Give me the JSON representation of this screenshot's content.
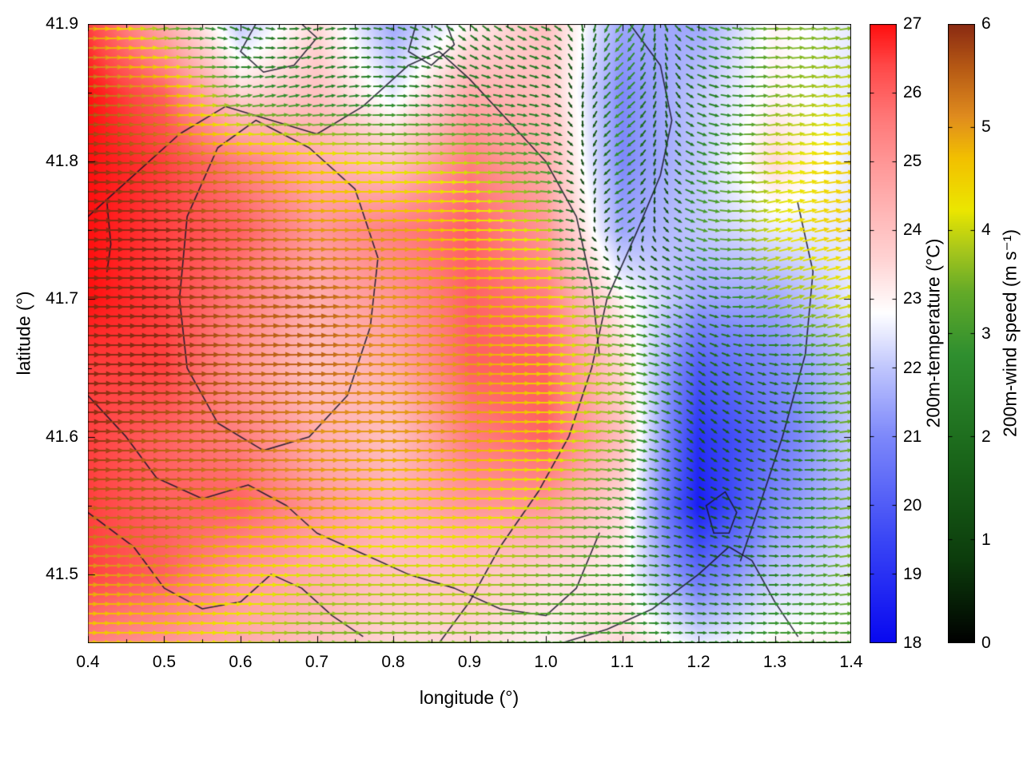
{
  "axes": {
    "x": {
      "label": "longitude (°)",
      "min": 0.4,
      "max": 1.4,
      "ticks": [
        0.4,
        0.5,
        0.6,
        0.7,
        0.8,
        0.9,
        1.0,
        1.1,
        1.2,
        1.3,
        1.4
      ],
      "tick_labels": [
        "0.4",
        "0.5",
        "0.6",
        "0.7",
        "0.8",
        "0.9",
        "1.0",
        "1.1",
        "1.2",
        "1.3",
        "1.4"
      ],
      "minor_step": 0.05
    },
    "y": {
      "label": "latitude (°)",
      "min": 41.45,
      "max": 41.9,
      "ticks": [
        41.5,
        41.6,
        41.7,
        41.8,
        41.9
      ],
      "tick_labels": [
        "41.5",
        "41.6",
        "41.7",
        "41.8",
        "41.9"
      ],
      "minor_step": 0.05
    }
  },
  "colorbars": [
    {
      "id": "temperature",
      "label": "200m-temperature (°C)",
      "min": 18,
      "max": 27,
      "ticks": [
        18,
        19,
        20,
        21,
        22,
        23,
        24,
        25,
        26,
        27
      ],
      "tick_labels": [
        "18",
        "19",
        "20",
        "21",
        "22",
        "23",
        "24",
        "25",
        "26",
        "27"
      ],
      "stops": [
        [
          18,
          "#0808f0"
        ],
        [
          19.5,
          "#3a46f5"
        ],
        [
          21,
          "#7d88fa"
        ],
        [
          22,
          "#c0c6fd"
        ],
        [
          22.8,
          "#ffffff"
        ],
        [
          23.6,
          "#ffd2d2"
        ],
        [
          24.6,
          "#ffa8a8"
        ],
        [
          25.6,
          "#ff7a7a"
        ],
        [
          26.4,
          "#ff4848"
        ],
        [
          27,
          "#ff0f0f"
        ]
      ]
    },
    {
      "id": "wind_speed",
      "label": "200m-wind speed (m s⁻¹)",
      "min": 0,
      "max": 6,
      "ticks": [
        0,
        1,
        2,
        3,
        4,
        5,
        6
      ],
      "tick_labels": [
        "0",
        "1",
        "2",
        "3",
        "4",
        "5",
        "6"
      ],
      "stops": [
        [
          0,
          "#000000"
        ],
        [
          0.8,
          "#0c3c0c"
        ],
        [
          1.8,
          "#1a661a"
        ],
        [
          2.8,
          "#2f8f2f"
        ],
        [
          3.4,
          "#63aa28"
        ],
        [
          3.8,
          "#a6c61c"
        ],
        [
          4.2,
          "#ebe600"
        ],
        [
          4.7,
          "#f2c000"
        ],
        [
          5.1,
          "#e08c1e"
        ],
        [
          5.6,
          "#b45714"
        ],
        [
          6,
          "#8a2a12"
        ]
      ]
    }
  ],
  "chart_data": {
    "type": "heatmap",
    "overlays": [
      "quiver",
      "contour"
    ],
    "xlabel": "longitude (°)",
    "ylabel": "latitude (°)",
    "xlim": [
      0.4,
      1.4
    ],
    "ylim": [
      41.45,
      41.9
    ],
    "temperature_units": "°C",
    "wind_units": "m s⁻¹",
    "lon": [
      0.4,
      0.5,
      0.6,
      0.7,
      0.8,
      0.9,
      1.0,
      1.1,
      1.2,
      1.3,
      1.4
    ],
    "lat": [
      41.9,
      41.85,
      41.8,
      41.75,
      41.7,
      41.65,
      41.6,
      41.55,
      41.5,
      41.45
    ],
    "temperature_c": [
      [
        26.5,
        24.5,
        22.0,
        23.5,
        21.5,
        23.0,
        24.0,
        21.5,
        21.5,
        23.0,
        22.5
      ],
      [
        27.0,
        26.0,
        23.5,
        24.0,
        22.5,
        24.5,
        24.0,
        21.0,
        22.0,
        23.0,
        22.5
      ],
      [
        27.0,
        26.5,
        25.5,
        24.5,
        24.0,
        25.5,
        24.5,
        21.0,
        22.0,
        23.5,
        22.5
      ],
      [
        27.0,
        26.5,
        26.0,
        25.0,
        25.5,
        26.0,
        25.0,
        21.5,
        22.0,
        22.5,
        22.5
      ],
      [
        27.0,
        26.5,
        25.5,
        24.5,
        25.0,
        26.0,
        25.5,
        23.0,
        21.5,
        21.5,
        22.5
      ],
      [
        26.5,
        26.5,
        25.0,
        24.0,
        24.5,
        26.0,
        26.0,
        23.5,
        20.0,
        21.0,
        22.0
      ],
      [
        26.5,
        26.0,
        25.5,
        24.5,
        24.0,
        25.5,
        26.0,
        24.0,
        19.0,
        20.5,
        22.0
      ],
      [
        26.5,
        26.0,
        26.0,
        25.0,
        24.5,
        25.0,
        25.0,
        23.5,
        18.5,
        21.0,
        22.0
      ],
      [
        26.5,
        26.0,
        25.0,
        24.5,
        24.0,
        24.0,
        23.5,
        23.0,
        20.5,
        22.0,
        22.5
      ],
      [
        25.5,
        25.0,
        24.5,
        24.0,
        23.5,
        23.5,
        23.0,
        23.5,
        22.5,
        23.0,
        23.0
      ]
    ],
    "wind_u_ms": [
      [
        5.0,
        3.5,
        2.0,
        2.5,
        2.0,
        1.5,
        2.5,
        -2.0,
        2.5,
        3.5,
        3.5
      ],
      [
        5.5,
        5.0,
        3.0,
        2.5,
        2.5,
        2.5,
        2.0,
        -2.5,
        2.0,
        3.5,
        4.0
      ],
      [
        6.0,
        5.5,
        5.0,
        4.5,
        4.0,
        4.0,
        3.0,
        -2.5,
        2.5,
        4.0,
        4.5
      ],
      [
        6.0,
        6.0,
        5.5,
        5.0,
        5.0,
        4.5,
        4.0,
        -2.0,
        3.0,
        4.0,
        4.5
      ],
      [
        6.0,
        6.0,
        5.5,
        5.5,
        5.0,
        5.0,
        4.5,
        3.0,
        2.0,
        3.5,
        4.0
      ],
      [
        6.0,
        6.0,
        5.5,
        5.5,
        5.0,
        5.0,
        4.5,
        3.5,
        1.5,
        2.0,
        3.5
      ],
      [
        6.0,
        5.5,
        5.5,
        5.0,
        5.0,
        5.0,
        4.5,
        3.5,
        1.0,
        1.5,
        3.5
      ],
      [
        5.5,
        5.5,
        5.0,
        5.0,
        4.5,
        4.5,
        4.0,
        3.0,
        1.0,
        2.0,
        3.5
      ],
      [
        5.0,
        5.0,
        4.5,
        4.0,
        4.0,
        4.0,
        3.5,
        3.0,
        1.5,
        2.5,
        3.5
      ],
      [
        4.5,
        4.5,
        4.0,
        3.5,
        3.5,
        3.5,
        3.0,
        3.0,
        2.5,
        3.0,
        3.0
      ]
    ],
    "wind_v_ms": [
      [
        0.0,
        0.5,
        -1.0,
        0.5,
        -0.5,
        -1.5,
        -1.0,
        -2.5,
        -1.0,
        0.0,
        0.5
      ],
      [
        0.0,
        0.0,
        0.5,
        0.5,
        0.0,
        -0.5,
        -0.5,
        -2.0,
        -1.0,
        0.5,
        0.5
      ],
      [
        0.0,
        0.0,
        0.0,
        0.0,
        0.0,
        0.0,
        -0.5,
        -1.5,
        -1.0,
        0.5,
        0.5
      ],
      [
        0.0,
        0.0,
        0.0,
        0.0,
        0.0,
        0.0,
        0.0,
        -1.0,
        -1.0,
        1.0,
        1.0
      ],
      [
        0.0,
        0.0,
        0.5,
        0.5,
        0.0,
        0.0,
        0.0,
        -0.5,
        -1.0,
        1.0,
        1.0
      ],
      [
        0.0,
        0.0,
        0.0,
        0.0,
        0.0,
        0.0,
        0.0,
        -0.5,
        -1.0,
        -0.5,
        0.5
      ],
      [
        0.0,
        0.0,
        0.0,
        0.0,
        0.0,
        0.0,
        0.0,
        -0.5,
        -1.0,
        -0.5,
        0.5
      ],
      [
        0.0,
        0.0,
        0.0,
        0.0,
        0.0,
        0.0,
        0.0,
        -0.5,
        -0.5,
        -0.5,
        0.5
      ],
      [
        0.0,
        0.0,
        0.0,
        0.0,
        0.0,
        0.0,
        0.0,
        0.0,
        -0.5,
        0.0,
        0.5
      ],
      [
        0.0,
        0.0,
        0.0,
        0.0,
        0.0,
        0.0,
        0.0,
        0.0,
        0.0,
        0.0,
        0.0
      ]
    ],
    "contour_lines": [
      [
        [
          0.86,
          41.45
        ],
        [
          0.9,
          41.48
        ],
        [
          0.94,
          41.52
        ],
        [
          0.99,
          41.56
        ],
        [
          1.03,
          41.6
        ],
        [
          1.06,
          41.65
        ],
        [
          1.08,
          41.7
        ],
        [
          1.12,
          41.75
        ],
        [
          1.15,
          41.79
        ],
        [
          1.165,
          41.83
        ],
        [
          1.15,
          41.87
        ],
        [
          1.11,
          41.9
        ]
      ],
      [
        [
          0.4,
          41.76
        ],
        [
          0.46,
          41.79
        ],
        [
          0.52,
          41.82
        ],
        [
          0.58,
          41.84
        ],
        [
          0.64,
          41.83
        ],
        [
          0.7,
          41.82
        ],
        [
          0.76,
          41.84
        ],
        [
          0.82,
          41.87
        ],
        [
          0.86,
          41.88
        ],
        [
          0.9,
          41.86
        ],
        [
          0.95,
          41.83
        ],
        [
          1.0,
          41.8
        ],
        [
          1.04,
          41.76
        ],
        [
          1.06,
          41.71
        ],
        [
          1.07,
          41.66
        ]
      ],
      [
        [
          0.57,
          41.81
        ],
        [
          0.53,
          41.76
        ],
        [
          0.52,
          41.7
        ],
        [
          0.53,
          41.65
        ],
        [
          0.57,
          41.61
        ],
        [
          0.63,
          41.59
        ],
        [
          0.69,
          41.6
        ],
        [
          0.74,
          41.63
        ],
        [
          0.77,
          41.68
        ],
        [
          0.78,
          41.73
        ],
        [
          0.75,
          41.78
        ],
        [
          0.69,
          41.81
        ],
        [
          0.62,
          41.83
        ],
        [
          0.57,
          41.81
        ]
      ],
      [
        [
          0.4,
          41.63
        ],
        [
          0.45,
          41.6
        ],
        [
          0.49,
          41.57
        ],
        [
          0.55,
          41.555
        ],
        [
          0.61,
          41.565
        ],
        [
          0.66,
          41.55
        ],
        [
          0.7,
          41.53
        ],
        [
          0.76,
          41.515
        ],
        [
          0.82,
          41.5
        ],
        [
          0.88,
          41.49
        ],
        [
          0.94,
          41.475
        ],
        [
          1.0,
          41.47
        ],
        [
          1.04,
          41.49
        ],
        [
          1.07,
          41.53
        ]
      ],
      [
        [
          0.4,
          41.545
        ],
        [
          0.46,
          41.52
        ],
        [
          0.5,
          41.49
        ],
        [
          0.55,
          41.475
        ],
        [
          0.6,
          41.48
        ],
        [
          0.64,
          41.5
        ],
        [
          0.68,
          41.49
        ],
        [
          0.72,
          41.47
        ],
        [
          0.76,
          41.455
        ]
      ],
      [
        [
          1.02,
          41.45
        ],
        [
          1.08,
          41.46
        ],
        [
          1.14,
          41.475
        ],
        [
          1.2,
          41.5
        ],
        [
          1.24,
          41.52
        ],
        [
          1.27,
          41.51
        ],
        [
          1.3,
          41.48
        ],
        [
          1.33,
          41.455
        ]
      ],
      [
        [
          1.33,
          41.77
        ],
        [
          1.35,
          41.72
        ],
        [
          1.34,
          41.66
        ],
        [
          1.31,
          41.6
        ],
        [
          1.28,
          41.55
        ],
        [
          1.255,
          41.51
        ]
      ],
      [
        [
          0.62,
          41.9
        ],
        [
          0.6,
          41.88
        ],
        [
          0.63,
          41.865
        ],
        [
          0.67,
          41.87
        ],
        [
          0.7,
          41.89
        ],
        [
          0.68,
          41.9
        ]
      ],
      [
        [
          0.83,
          41.9
        ],
        [
          0.82,
          41.88
        ],
        [
          0.85,
          41.87
        ],
        [
          0.88,
          41.885
        ],
        [
          0.87,
          41.9
        ]
      ],
      [
        [
          0.425,
          41.77
        ],
        [
          0.43,
          41.74
        ],
        [
          0.425,
          41.72
        ]
      ],
      [
        [
          1.21,
          41.55
        ],
        [
          1.235,
          41.56
        ],
        [
          1.25,
          41.545
        ],
        [
          1.24,
          41.53
        ],
        [
          1.22,
          41.53
        ],
        [
          1.21,
          41.55
        ]
      ]
    ]
  }
}
